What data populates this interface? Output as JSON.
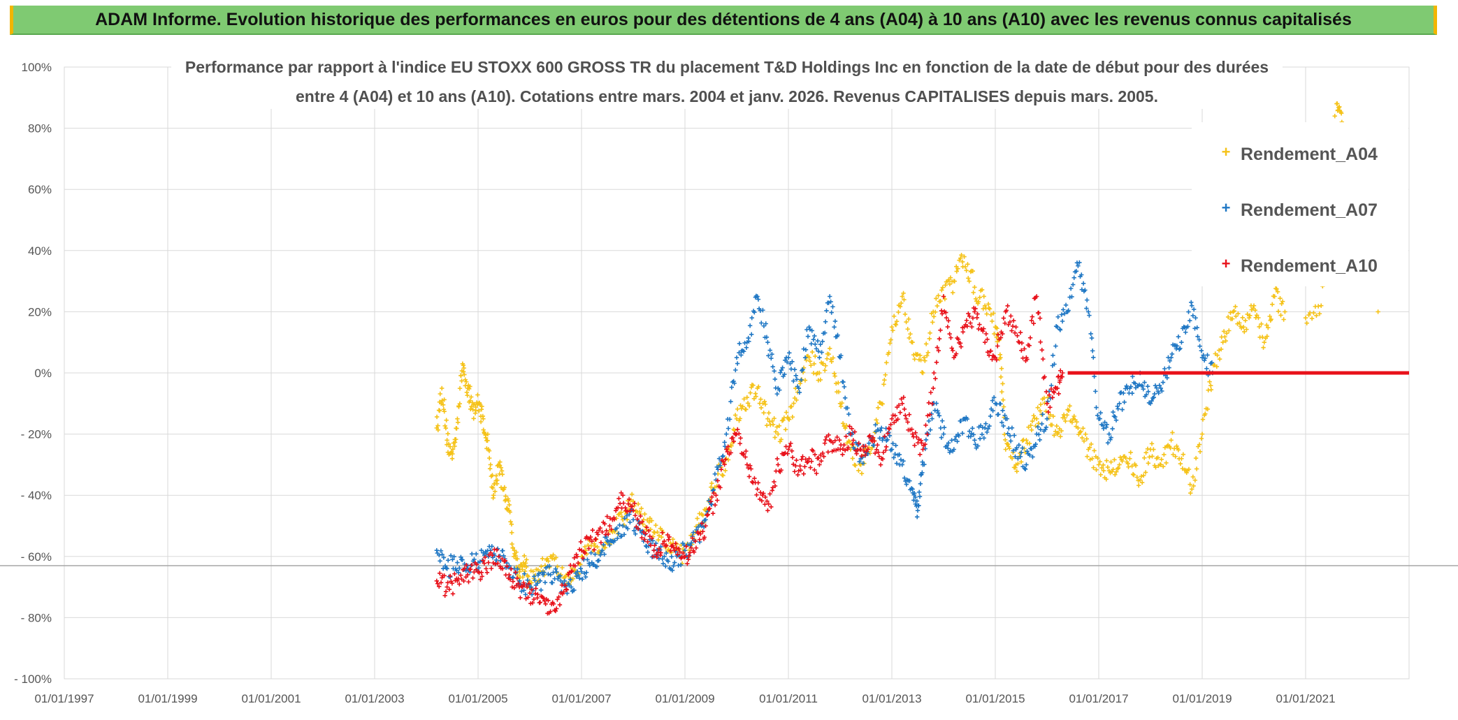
{
  "header": {
    "title": "ADAM Informe. Evolution historique des performances en euros pour des détentions de 4 ans (A04) à 10 ans (A10) avec les revenus connus capitalisés"
  },
  "colors": {
    "header_bg": "#7fca72",
    "accent": "#f2b500",
    "a04": "#f5c218",
    "a07": "#1f77c4",
    "a10": "#e8111a"
  },
  "chart_data": {
    "type": "scatter",
    "title_lines": [
      "Performance par rapport à l'indice EU STOXX 600 GROSS TR  du placement T&D Holdings Inc en fonction de la date de début pour des durées",
      "entre 4 (A04) et 10 ans (A10). Cotations entre mars. 2004 et janv. 2026. Revenus CAPITALISES depuis mars. 2005."
    ],
    "xlim": [
      1997.0,
      2023.0
    ],
    "ylim": [
      -100,
      100
    ],
    "ylabels": [
      "100%",
      "80%",
      "60%",
      "40%",
      "20%",
      "0%",
      "- 20%",
      "- 40%",
      "- 60%",
      "- 80%",
      "- 100%"
    ],
    "yvalues": [
      100,
      80,
      60,
      40,
      20,
      0,
      -20,
      -40,
      -60,
      -80,
      -100
    ],
    "xticks": [
      {
        "label": "01/01/1997",
        "value": 1997
      },
      {
        "label": "01/01/1999",
        "value": 1999
      },
      {
        "label": "01/01/2001",
        "value": 2001
      },
      {
        "label": "01/01/2003",
        "value": 2003
      },
      {
        "label": "01/01/2005",
        "value": 2005
      },
      {
        "label": "01/01/2007",
        "value": 2007
      },
      {
        "label": "01/01/2009",
        "value": 2009
      },
      {
        "label": "01/01/2011",
        "value": 2011
      },
      {
        "label": "01/01/2013",
        "value": 2013
      },
      {
        "label": "01/01/2015",
        "value": 2015
      },
      {
        "label": "01/01/2017",
        "value": 2017
      },
      {
        "label": "01/01/2019",
        "value": 2019
      },
      {
        "label": "01/01/2021",
        "value": 2021
      }
    ],
    "reference_line": -63,
    "legend": [
      "Rendement_A04",
      "Rendement_A07",
      "Rendement_A10"
    ],
    "series": [
      {
        "name": "Rendement_A04",
        "color": "#f5c218",
        "points": [
          [
            2004.2,
            -18
          ],
          [
            2004.3,
            -5
          ],
          [
            2004.4,
            -22
          ],
          [
            2004.5,
            -28
          ],
          [
            2004.6,
            -15
          ],
          [
            2004.7,
            3
          ],
          [
            2004.8,
            -5
          ],
          [
            2004.9,
            -12
          ],
          [
            2005.0,
            -10
          ],
          [
            2005.1,
            -15
          ],
          [
            2005.2,
            -25
          ],
          [
            2005.3,
            -40
          ],
          [
            2005.4,
            -30
          ],
          [
            2005.5,
            -38
          ],
          [
            2005.6,
            -45
          ],
          [
            2005.7,
            -58
          ],
          [
            2005.8,
            -65
          ],
          [
            2005.9,
            -63
          ],
          [
            2006.0,
            -68
          ],
          [
            2006.2,
            -65
          ],
          [
            2006.4,
            -60
          ],
          [
            2006.6,
            -66
          ],
          [
            2006.8,
            -68
          ],
          [
            2007.0,
            -60
          ],
          [
            2007.2,
            -55
          ],
          [
            2007.4,
            -58
          ],
          [
            2007.6,
            -52
          ],
          [
            2007.8,
            -48
          ],
          [
            2008.0,
            -42
          ],
          [
            2008.2,
            -48
          ],
          [
            2008.4,
            -52
          ],
          [
            2008.6,
            -55
          ],
          [
            2008.8,
            -58
          ],
          [
            2009.0,
            -60
          ],
          [
            2009.2,
            -52
          ],
          [
            2009.4,
            -45
          ],
          [
            2009.6,
            -35
          ],
          [
            2009.8,
            -28
          ],
          [
            2010.0,
            -15
          ],
          [
            2010.2,
            -8
          ],
          [
            2010.4,
            -5
          ],
          [
            2010.6,
            -15
          ],
          [
            2010.8,
            -20
          ],
          [
            2011.0,
            -15
          ],
          [
            2011.2,
            -5
          ],
          [
            2011.4,
            5
          ],
          [
            2011.6,
            0
          ],
          [
            2011.8,
            8
          ],
          [
            2012.0,
            -10
          ],
          [
            2012.2,
            -25
          ],
          [
            2012.4,
            -30
          ],
          [
            2012.6,
            -25
          ],
          [
            2012.8,
            -10
          ],
          [
            2013.0,
            15
          ],
          [
            2013.2,
            25
          ],
          [
            2013.4,
            10
          ],
          [
            2013.6,
            0
          ],
          [
            2013.8,
            20
          ],
          [
            2014.0,
            25
          ],
          [
            2014.2,
            30
          ],
          [
            2014.4,
            38
          ],
          [
            2014.6,
            28
          ],
          [
            2014.8,
            22
          ],
          [
            2015.0,
            15
          ],
          [
            2015.1,
            5
          ],
          [
            2015.2,
            -25
          ],
          [
            2015.4,
            -30
          ],
          [
            2015.6,
            -22
          ],
          [
            2015.8,
            -15
          ],
          [
            2016.0,
            -10
          ],
          [
            2016.2,
            -20
          ],
          [
            2016.4,
            -12
          ],
          [
            2016.6,
            -18
          ],
          [
            2016.8,
            -25
          ],
          [
            2017.0,
            -30
          ],
          [
            2017.2,
            -32
          ],
          [
            2017.4,
            -30
          ],
          [
            2017.6,
            -28
          ],
          [
            2017.8,
            -35
          ],
          [
            2018.0,
            -25
          ],
          [
            2018.2,
            -30
          ],
          [
            2018.4,
            -22
          ],
          [
            2018.6,
            -28
          ],
          [
            2018.8,
            -38
          ],
          [
            2019.0,
            -20
          ],
          [
            2019.2,
            0
          ],
          [
            2019.4,
            10
          ],
          [
            2019.6,
            20
          ],
          [
            2019.8,
            15
          ],
          [
            2020.0,
            22
          ],
          [
            2020.2,
            10
          ],
          [
            2020.4,
            25
          ],
          [
            2020.6,
            20
          ],
          [
            2021.0,
            18
          ],
          [
            2021.3,
            22
          ],
          [
            2021.6,
            88
          ],
          [
            2021.7,
            82
          ],
          [
            2022.4,
            20
          ]
        ]
      },
      {
        "name": "Rendement_A07",
        "color": "#1f77c4",
        "points": [
          [
            2004.2,
            -58
          ],
          [
            2004.4,
            -64
          ],
          [
            2004.6,
            -62
          ],
          [
            2004.8,
            -63
          ],
          [
            2005.0,
            -62
          ],
          [
            2005.2,
            -60
          ],
          [
            2005.4,
            -60
          ],
          [
            2005.6,
            -63
          ],
          [
            2005.8,
            -68
          ],
          [
            2006.0,
            -70
          ],
          [
            2006.2,
            -68
          ],
          [
            2006.4,
            -66
          ],
          [
            2006.6,
            -68
          ],
          [
            2006.8,
            -70
          ],
          [
            2007.0,
            -65
          ],
          [
            2007.2,
            -62
          ],
          [
            2007.4,
            -58
          ],
          [
            2007.6,
            -55
          ],
          [
            2007.8,
            -50
          ],
          [
            2008.0,
            -48
          ],
          [
            2008.2,
            -55
          ],
          [
            2008.4,
            -58
          ],
          [
            2008.6,
            -60
          ],
          [
            2008.8,
            -62
          ],
          [
            2009.0,
            -58
          ],
          [
            2009.2,
            -55
          ],
          [
            2009.4,
            -48
          ],
          [
            2009.6,
            -35
          ],
          [
            2009.8,
            -20
          ],
          [
            2010.0,
            5
          ],
          [
            2010.2,
            10
          ],
          [
            2010.4,
            25
          ],
          [
            2010.6,
            10
          ],
          [
            2010.8,
            -5
          ],
          [
            2011.0,
            5
          ],
          [
            2011.2,
            -5
          ],
          [
            2011.4,
            15
          ],
          [
            2011.6,
            5
          ],
          [
            2011.8,
            25
          ],
          [
            2012.0,
            5
          ],
          [
            2012.2,
            -20
          ],
          [
            2012.4,
            -28
          ],
          [
            2012.6,
            -22
          ],
          [
            2012.8,
            -18
          ],
          [
            2013.0,
            -25
          ],
          [
            2013.2,
            -30
          ],
          [
            2013.4,
            -38
          ],
          [
            2013.5,
            -45
          ],
          [
            2013.6,
            -30
          ],
          [
            2013.8,
            -10
          ],
          [
            2014.0,
            -20
          ],
          [
            2014.2,
            -25
          ],
          [
            2014.4,
            -15
          ],
          [
            2014.6,
            -22
          ],
          [
            2014.8,
            -18
          ],
          [
            2015.0,
            -10
          ],
          [
            2015.2,
            -15
          ],
          [
            2015.4,
            -25
          ],
          [
            2015.6,
            -30
          ],
          [
            2015.8,
            -20
          ],
          [
            2016.0,
            -15
          ],
          [
            2016.2,
            15
          ],
          [
            2016.4,
            20
          ],
          [
            2016.6,
            35
          ],
          [
            2016.8,
            20
          ],
          [
            2017.0,
            -15
          ],
          [
            2017.2,
            -20
          ],
          [
            2017.4,
            -10
          ],
          [
            2017.6,
            -5
          ],
          [
            2017.8,
            0
          ],
          [
            2018.0,
            -10
          ],
          [
            2018.2,
            -5
          ],
          [
            2018.4,
            5
          ],
          [
            2018.6,
            10
          ],
          [
            2018.8,
            22
          ],
          [
            2019.0,
            5
          ],
          [
            2019.2,
            0
          ]
        ]
      },
      {
        "name": "Rendement_A10",
        "color": "#e8111a",
        "points": [
          [
            2004.2,
            -68
          ],
          [
            2004.4,
            -70
          ],
          [
            2004.6,
            -68
          ],
          [
            2004.8,
            -66
          ],
          [
            2005.0,
            -65
          ],
          [
            2005.2,
            -62
          ],
          [
            2005.4,
            -60
          ],
          [
            2005.6,
            -66
          ],
          [
            2005.8,
            -70
          ],
          [
            2006.0,
            -72
          ],
          [
            2006.2,
            -75
          ],
          [
            2006.4,
            -78
          ],
          [
            2006.6,
            -72
          ],
          [
            2006.8,
            -65
          ],
          [
            2007.0,
            -58
          ],
          [
            2007.2,
            -55
          ],
          [
            2007.4,
            -52
          ],
          [
            2007.6,
            -48
          ],
          [
            2007.8,
            -40
          ],
          [
            2008.0,
            -45
          ],
          [
            2008.2,
            -52
          ],
          [
            2008.4,
            -58
          ],
          [
            2008.6,
            -55
          ],
          [
            2008.8,
            -58
          ],
          [
            2009.0,
            -60
          ],
          [
            2009.2,
            -55
          ],
          [
            2009.4,
            -50
          ],
          [
            2009.6,
            -40
          ],
          [
            2009.8,
            -25
          ],
          [
            2010.0,
            -20
          ],
          [
            2010.2,
            -30
          ],
          [
            2010.4,
            -38
          ],
          [
            2010.6,
            -45
          ],
          [
            2010.8,
            -30
          ],
          [
            2011.0,
            -25
          ],
          [
            2011.2,
            -32
          ],
          [
            2011.4,
            -28
          ],
          [
            2011.6,
            -30
          ],
          [
            2011.8,
            -22
          ],
          [
            2012.0,
            -25
          ],
          [
            2012.2,
            -20
          ],
          [
            2012.4,
            -25
          ],
          [
            2012.6,
            -22
          ],
          [
            2012.8,
            -28
          ],
          [
            2013.0,
            -15
          ],
          [
            2013.2,
            -10
          ],
          [
            2013.4,
            -20
          ],
          [
            2013.6,
            -25
          ],
          [
            2013.8,
            -5
          ],
          [
            2014.0,
            25
          ],
          [
            2014.2,
            5
          ],
          [
            2014.4,
            15
          ],
          [
            2014.6,
            20
          ],
          [
            2014.8,
            10
          ],
          [
            2015.0,
            5
          ],
          [
            2015.2,
            20
          ],
          [
            2015.4,
            15
          ],
          [
            2015.6,
            5
          ],
          [
            2015.8,
            25
          ],
          [
            2016.0,
            -10
          ],
          [
            2016.2,
            -5
          ],
          [
            2016.3,
            0
          ]
        ],
        "flat_segment": {
          "from": 2016.4,
          "to": 2023.0,
          "value": 0
        }
      }
    ]
  }
}
